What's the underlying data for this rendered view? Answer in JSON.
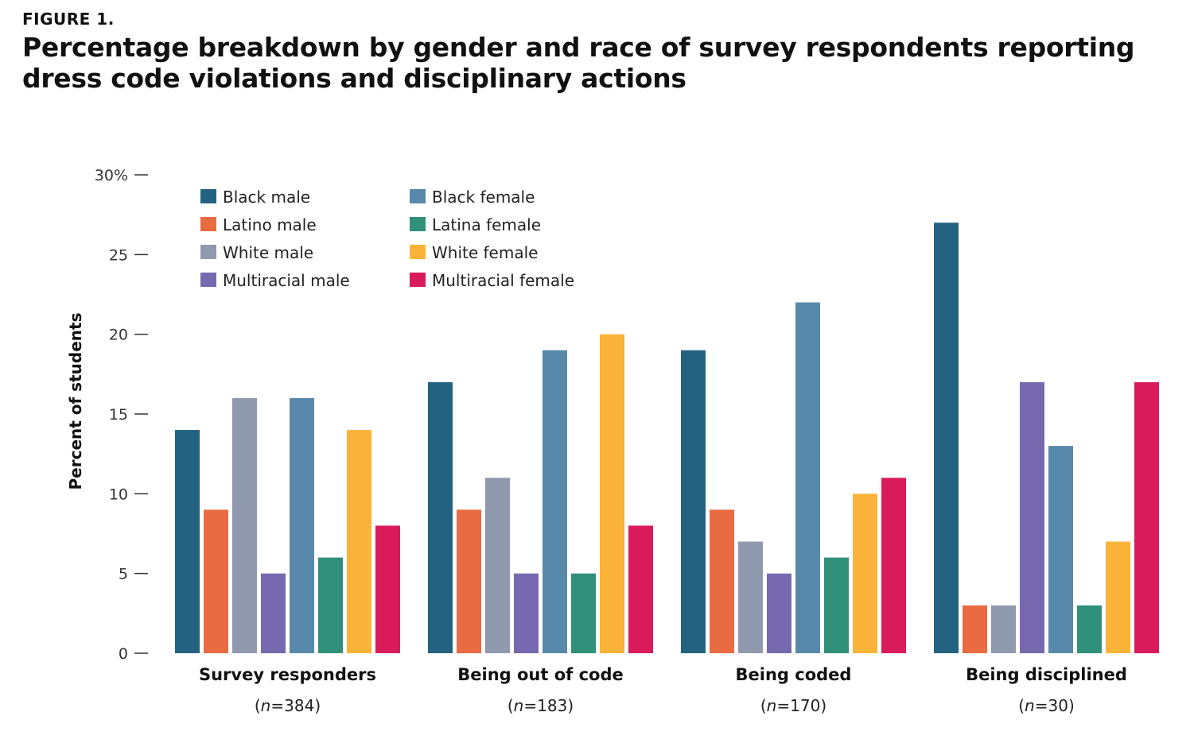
{
  "figure_label": "FIGURE 1.",
  "title": "Percentage breakdown by gender and race of survey respondents reporting dress code violations and disciplinary actions",
  "chart_data": {
    "type": "bar",
    "title": "Percentage breakdown by gender and race of survey respondents reporting dress code violations and disciplinary actions",
    "xlabel": "",
    "ylabel": "Percent of students",
    "ylim": [
      0,
      30
    ],
    "yticks": [
      {
        "value": 0,
        "label": "0"
      },
      {
        "value": 5,
        "label": "5"
      },
      {
        "value": 10,
        "label": "10"
      },
      {
        "value": 15,
        "label": "15"
      },
      {
        "value": 20,
        "label": "20"
      },
      {
        "value": 25,
        "label": "25"
      },
      {
        "value": 30,
        "label": "30%"
      }
    ],
    "categories": [
      "Survey responders",
      "Being out of code",
      "Being coded",
      "Being disciplined"
    ],
    "n_prefix": "n",
    "n_values": [
      "384",
      "183",
      "170",
      "30"
    ],
    "legend_placement": "top-left",
    "grid": false,
    "series": [
      {
        "name": "Black male",
        "color": "#236381",
        "values": [
          14,
          17,
          19,
          27
        ]
      },
      {
        "name": "Latino male",
        "color": "#E86B42",
        "values": [
          9,
          9,
          9,
          3
        ]
      },
      {
        "name": "White male",
        "color": "#8F9AAF",
        "values": [
          16,
          11,
          7,
          3
        ]
      },
      {
        "name": "Multiracial male",
        "color": "#7769B0",
        "values": [
          5,
          5,
          5,
          17
        ]
      },
      {
        "name": "Black female",
        "color": "#5889AB",
        "values": [
          16,
          19,
          22,
          13
        ]
      },
      {
        "name": "Latina female",
        "color": "#30907A",
        "values": [
          6,
          5,
          6,
          3
        ]
      },
      {
        "name": "White female",
        "color": "#FBB33A",
        "values": [
          14,
          20,
          10,
          7
        ]
      },
      {
        "name": "Multiracial female",
        "color": "#D91B5C",
        "values": [
          8,
          8,
          11,
          17
        ]
      }
    ]
  }
}
